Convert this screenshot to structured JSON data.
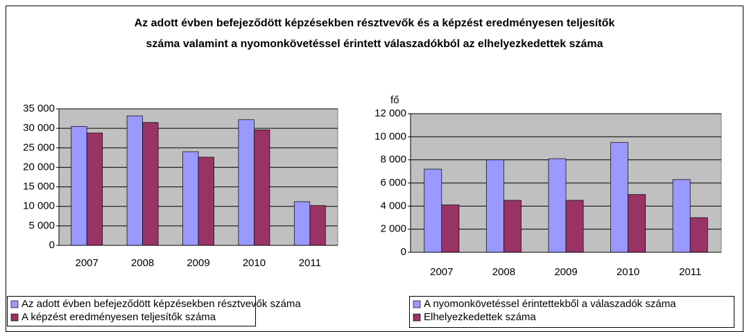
{
  "title": "Az adott évben befejeződött képzésekben résztvevők és a képzést eredményesen teljesítők száma valamint a nyomonkövetéssel érintett válaszadókból az elhelyezkedettek száma",
  "chart_data": [
    {
      "type": "bar",
      "categories": [
        "2007",
        "2008",
        "2009",
        "2010",
        "2011"
      ],
      "series": [
        {
          "name": "Az adott évben befejeződött képzésekben  résztvevők száma",
          "color": "#9999ff",
          "values": [
            30500,
            33200,
            24000,
            32200,
            11200
          ]
        },
        {
          "name": "A képzést eredményesen teljesítők száma",
          "color": "#993366",
          "values": [
            28800,
            31500,
            22600,
            29600,
            10200
          ]
        }
      ],
      "ylim": [
        0,
        35000
      ],
      "yticks": [
        0,
        {
          "value": 5000,
          "label": "5 000"
        },
        {
          "value": 10000,
          "label": "10 000"
        },
        {
          "value": 15000,
          "label": "15 000"
        },
        {
          "value": 20000,
          "label": "20 000"
        },
        {
          "value": 25000,
          "label": "25 000"
        },
        {
          "value": 30000,
          "label": "30 000"
        },
        {
          "value": 35000,
          "label": "35 000"
        }
      ],
      "grid": true
    },
    {
      "type": "bar",
      "ylabel": "fő",
      "categories": [
        "2007",
        "2008",
        "2009",
        "2010",
        "2011"
      ],
      "series": [
        {
          "name": "A nyomonkövetéssel érintettekből a válaszadók száma",
          "color": "#9999ff",
          "values": [
            7200,
            8000,
            8100,
            9500,
            6300
          ]
        },
        {
          "name": "Elhelyezkedettek száma",
          "color": "#993366",
          "values": [
            4100,
            4500,
            4500,
            5000,
            3000
          ]
        }
      ],
      "ylim": [
        0,
        12000
      ],
      "yticks": [
        0,
        {
          "value": 2000,
          "label": "2 000"
        },
        {
          "value": 4000,
          "label": "4 000"
        },
        {
          "value": 6000,
          "label": "6 000"
        },
        {
          "value": 8000,
          "label": "8 000"
        },
        {
          "value": 10000,
          "label": "10 000"
        },
        {
          "value": 12000,
          "label": "12 000"
        }
      ],
      "grid": true
    }
  ]
}
